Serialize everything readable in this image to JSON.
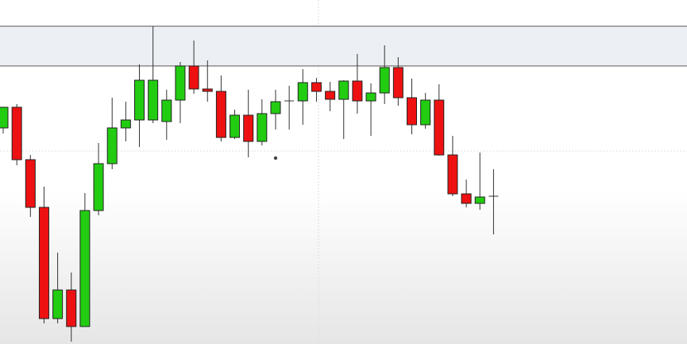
{
  "chart_data": {
    "type": "candlestick",
    "title": "",
    "xlabel": "",
    "ylabel": "",
    "ylim": [
      0,
      433
    ],
    "grid": true,
    "legend": "none",
    "colors": {
      "bullish": "#22cc11",
      "bearish": "#ee1111",
      "wick": "#333333",
      "zone": "#eceff4"
    },
    "resistance_zone": {
      "low": 350,
      "high": 400
    },
    "marker": {
      "x": 21,
      "y": 234
    },
    "candles": [
      {
        "x": 1,
        "open": 272,
        "high": 298,
        "low": 265,
        "close": 298
      },
      {
        "x": 2,
        "open": 298,
        "high": 302,
        "low": 225,
        "close": 232
      },
      {
        "x": 3,
        "open": 232,
        "high": 238,
        "low": 160,
        "close": 172
      },
      {
        "x": 4,
        "open": 172,
        "high": 198,
        "low": 26,
        "close": 32
      },
      {
        "x": 5,
        "open": 32,
        "high": 115,
        "low": 26,
        "close": 68
      },
      {
        "x": 6,
        "open": 68,
        "high": 90,
        "low": 3,
        "close": 22
      },
      {
        "x": 7,
        "open": 22,
        "high": 190,
        "low": 22,
        "close": 168
      },
      {
        "x": 8,
        "open": 168,
        "high": 253,
        "low": 162,
        "close": 227
      },
      {
        "x": 9,
        "open": 227,
        "high": 310,
        "low": 220,
        "close": 272
      },
      {
        "x": 10,
        "open": 272,
        "high": 305,
        "low": 255,
        "close": 282
      },
      {
        "x": 11,
        "open": 282,
        "high": 352,
        "low": 248,
        "close": 332
      },
      {
        "x": 12,
        "open": 282,
        "high": 400,
        "low": 278,
        "close": 332
      },
      {
        "x": 13,
        "open": 280,
        "high": 320,
        "low": 257,
        "close": 307
      },
      {
        "x": 14,
        "open": 307,
        "high": 355,
        "low": 278,
        "close": 350
      },
      {
        "x": 15,
        "open": 350,
        "high": 382,
        "low": 315,
        "close": 321
      },
      {
        "x": 16,
        "open": 321,
        "high": 357,
        "low": 305,
        "close": 318
      },
      {
        "x": 17,
        "open": 318,
        "high": 338,
        "low": 255,
        "close": 260
      },
      {
        "x": 18,
        "open": 260,
        "high": 295,
        "low": 258,
        "close": 288
      },
      {
        "x": 19,
        "open": 288,
        "high": 320,
        "low": 235,
        "close": 255
      },
      {
        "x": 20,
        "open": 255,
        "high": 308,
        "low": 250,
        "close": 290
      },
      {
        "x": 21,
        "open": 290,
        "high": 320,
        "low": 270,
        "close": 305
      },
      {
        "x": 22,
        "open": 305,
        "high": 325,
        "low": 270,
        "close": 306
      },
      {
        "x": 23,
        "open": 306,
        "high": 346,
        "low": 276,
        "close": 329
      },
      {
        "x": 24,
        "open": 329,
        "high": 335,
        "low": 305,
        "close": 318
      },
      {
        "x": 25,
        "open": 318,
        "high": 330,
        "low": 293,
        "close": 308
      },
      {
        "x": 26,
        "open": 308,
        "high": 332,
        "low": 258,
        "close": 331
      },
      {
        "x": 27,
        "open": 331,
        "high": 365,
        "low": 290,
        "close": 306
      },
      {
        "x": 28,
        "open": 306,
        "high": 328,
        "low": 262,
        "close": 316
      },
      {
        "x": 29,
        "open": 316,
        "high": 376,
        "low": 302,
        "close": 348
      },
      {
        "x": 30,
        "open": 348,
        "high": 361,
        "low": 300,
        "close": 310
      },
      {
        "x": 31,
        "open": 310,
        "high": 334,
        "low": 264,
        "close": 276
      },
      {
        "x": 32,
        "open": 276,
        "high": 316,
        "low": 271,
        "close": 307
      },
      {
        "x": 33,
        "open": 307,
        "high": 327,
        "low": 237,
        "close": 238
      },
      {
        "x": 34,
        "open": 238,
        "high": 262,
        "low": 186,
        "close": 189
      },
      {
        "x": 35,
        "open": 189,
        "high": 207,
        "low": 172,
        "close": 177
      },
      {
        "x": 36,
        "open": 177,
        "high": 241,
        "low": 169,
        "close": 185
      },
      {
        "x": 37,
        "open": 186,
        "high": 220,
        "low": 138,
        "close": 186
      }
    ]
  }
}
